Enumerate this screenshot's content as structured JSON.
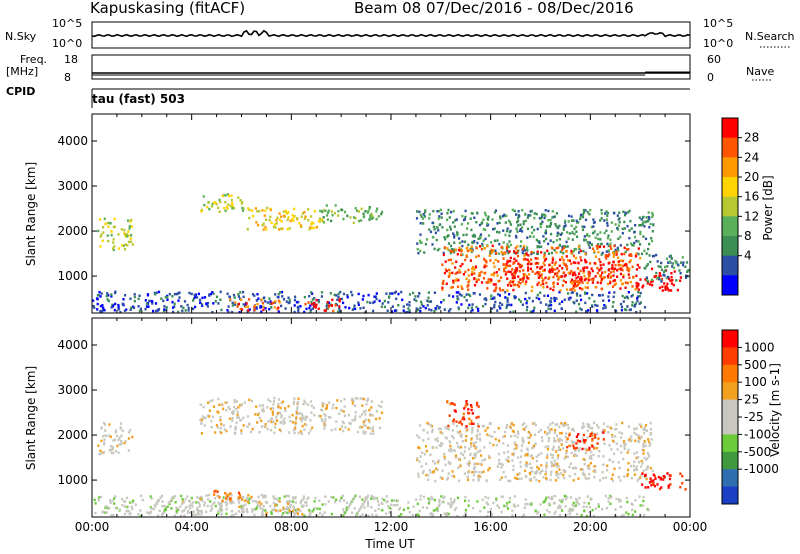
{
  "header": {
    "station": "Kapuskasing (fitACF)",
    "beam_date": "Beam 08  07/Dec/2016 - 08/Dec/2016"
  },
  "strip": {
    "nsky_label": "N.Sky",
    "nsky_ticks": [
      "10^5",
      "10^0"
    ],
    "nsearch_label": "N.Search",
    "nsearch_ticks": [
      "10^5",
      "10^0"
    ],
    "freq_label": "Freq.",
    "freq_unit": "[MHz]",
    "freq_ticks": [
      "18",
      "8"
    ],
    "nave_label": "Nave",
    "nave_ticks": [
      "60",
      "0"
    ],
    "cpid_label": "CPID",
    "cpid_value": "tau (fast) 503"
  },
  "colors": {
    "power_scale": [
      "#0000ff",
      "#2d4fa3",
      "#3b8f55",
      "#5ab05a",
      "#b8c830",
      "#ffd400",
      "#ff9900",
      "#ff5500",
      "#ff0000"
    ],
    "velocity_scale": [
      "#1a3fc4",
      "#2f6fb0",
      "#3f9a3f",
      "#6ccb3a",
      "#c8c8c0",
      "#c8c8c0",
      "#f2a020",
      "#ff7a00",
      "#ff3d00",
      "#ff0000"
    ]
  },
  "chart_data": [
    {
      "type": "heatmap",
      "title": "Power",
      "ylabel": "Slant Range [km]",
      "ylim": [
        180,
        4600
      ],
      "y_ticks": [
        1000,
        2000,
        3000,
        4000
      ],
      "xlim": [
        0,
        24
      ],
      "colorbar_label": "Power [dB]",
      "colorbar_ticks": [
        "28",
        "24",
        "20",
        "16",
        "12",
        "8",
        "4"
      ],
      "regions": [
        {
          "t0": 0.0,
          "t1": 22.3,
          "r0": 220,
          "r1": 680,
          "level": 1
        },
        {
          "t0": 5.5,
          "t1": 7.5,
          "r0": 260,
          "r1": 520,
          "level": 7
        },
        {
          "t0": 8.5,
          "t1": 10.0,
          "r0": 250,
          "r1": 520,
          "level": 8
        },
        {
          "t0": 0.2,
          "t1": 1.6,
          "r0": 1600,
          "r1": 2300,
          "level": 4
        },
        {
          "t0": 4.3,
          "t1": 6.2,
          "r0": 2450,
          "r1": 2850,
          "level": 4
        },
        {
          "t0": 6.2,
          "t1": 9.2,
          "r0": 2050,
          "r1": 2550,
          "level": 5
        },
        {
          "t0": 9.0,
          "t1": 11.6,
          "r0": 2200,
          "r1": 2600,
          "level": 3
        },
        {
          "t0": 13.0,
          "t1": 22.5,
          "r0": 1500,
          "r1": 2500,
          "level": 2
        },
        {
          "t0": 14.0,
          "t1": 22.0,
          "r0": 700,
          "r1": 1700,
          "level": 7
        },
        {
          "t0": 16.5,
          "t1": 21.5,
          "r0": 850,
          "r1": 1400,
          "level": 8
        },
        {
          "t0": 21.8,
          "t1": 23.6,
          "r0": 700,
          "r1": 1200,
          "level": 9
        },
        {
          "t0": 22.0,
          "t1": 23.9,
          "r0": 900,
          "r1": 1500,
          "level": 2
        }
      ]
    },
    {
      "type": "heatmap",
      "title": "Velocity",
      "ylabel": "Slant Range [km]",
      "xlabel": "Time UT",
      "ylim": [
        180,
        4600
      ],
      "y_ticks": [
        1000,
        2000,
        3000,
        4000
      ],
      "xlim": [
        0,
        24
      ],
      "x_ticks": [
        "00:00",
        "04:00",
        "08:00",
        "12:00",
        "16:00",
        "20:00",
        "00:00"
      ],
      "colorbar_label": "Velocity [m s-1]",
      "colorbar_ticks": [
        "1000",
        "500",
        "100",
        "25",
        "-25",
        "-100",
        "-500",
        "-1000"
      ],
      "regions": [
        {
          "t0": 0.0,
          "t1": 22.3,
          "r0": 220,
          "r1": 680,
          "level": 4
        },
        {
          "t0": 3.5,
          "t1": 8.5,
          "r0": 250,
          "r1": 700,
          "level": 5
        },
        {
          "t0": 4.8,
          "t1": 6.0,
          "r0": 550,
          "r1": 800,
          "level": 7
        },
        {
          "t0": 0.2,
          "t1": 1.6,
          "r0": 1600,
          "r1": 2300,
          "level": 5
        },
        {
          "t0": 4.3,
          "t1": 11.6,
          "r0": 2050,
          "r1": 2850,
          "level": 5
        },
        {
          "t0": 13.0,
          "t1": 22.5,
          "r0": 1000,
          "r1": 2300,
          "level": 5
        },
        {
          "t0": 14.2,
          "t1": 15.5,
          "r0": 2200,
          "r1": 2800,
          "level": 8
        },
        {
          "t0": 19.0,
          "t1": 20.5,
          "r0": 1700,
          "r1": 2100,
          "level": 8
        },
        {
          "t0": 22.0,
          "t1": 23.8,
          "r0": 800,
          "r1": 1200,
          "level": 9
        }
      ]
    }
  ]
}
